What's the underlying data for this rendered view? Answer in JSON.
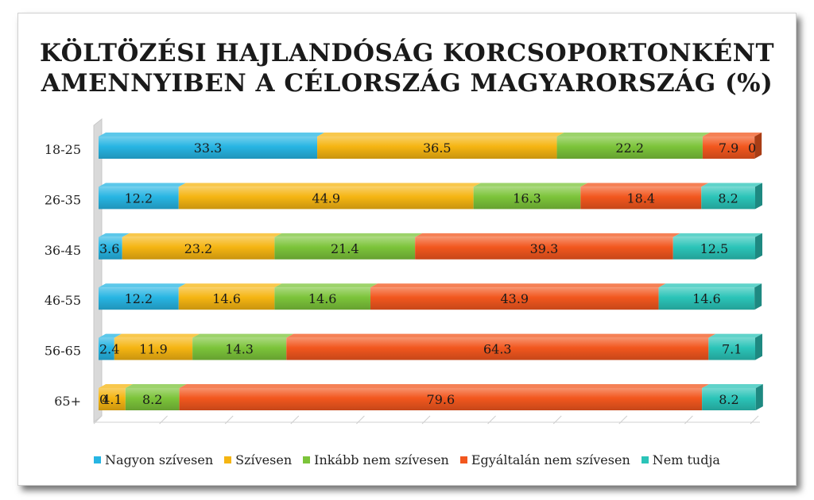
{
  "chart_data": {
    "type": "bar",
    "orientation": "horizontal",
    "stacked": true,
    "title": "KÖLTÖZÉSI HAJLANDÓSÁG KORCSOPORTONKÉNT AMENNYIBEN A CÉLORSZÁG MAGYARORSZÁG (%)",
    "title_lines": [
      "KÖLTÖZÉSI HAJLANDÓSÁG KORCSOPORTONKÉNT",
      "AMENNYIBEN A CÉLORSZÁG MAGYARORSZÁG (%)"
    ],
    "xlabel": "",
    "ylabel": "",
    "xlim": [
      0,
      100
    ],
    "legend_position": "bottom",
    "categories": [
      "18-25",
      "26-35",
      "36-45",
      "46-55",
      "56-65",
      "65+"
    ],
    "series": [
      {
        "name": "Nagyon szívesen",
        "color": "#27b5e3",
        "values": [
          33.3,
          12.2,
          3.6,
          12.2,
          2.4,
          0
        ]
      },
      {
        "name": "Szívesen",
        "color": "#f5b512",
        "values": [
          36.5,
          44.9,
          23.2,
          14.6,
          11.9,
          4.1
        ]
      },
      {
        "name": "Inkább nem szívesen",
        "color": "#7cc43a",
        "values": [
          22.2,
          16.3,
          21.4,
          14.6,
          14.3,
          8.2
        ]
      },
      {
        "name": "Egyáltalán nem szívesen",
        "color": "#f2571e",
        "values": [
          7.9,
          18.4,
          39.3,
          43.9,
          64.3,
          79.6
        ]
      },
      {
        "name": "Nem tudja",
        "color": "#2bc4b8",
        "values": [
          0,
          8.2,
          12.5,
          14.6,
          7.1,
          8.2
        ]
      }
    ]
  }
}
